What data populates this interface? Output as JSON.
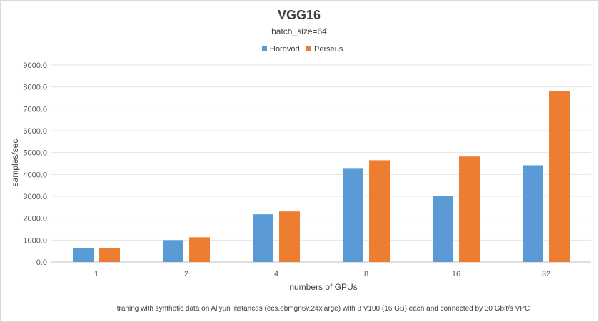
{
  "chart_data": {
    "type": "bar",
    "title": "VGG16",
    "subtitle": "batch_size=64",
    "xlabel": "numbers of GPUs",
    "ylabel": "samples/sec",
    "note": "traning with synthetic data on Aliyun instances (ecs.ebmgn6v.24xlarge) with 8  V100 (16 GB) each and connected by 30 Gbit/s VPC",
    "categories": [
      "1",
      "2",
      "4",
      "8",
      "16",
      "32"
    ],
    "ylim": [
      0,
      9000
    ],
    "yticks": [
      "0.0",
      "1000.0",
      "2000.0",
      "3000.0",
      "4000.0",
      "5000.0",
      "6000.0",
      "7000.0",
      "8000.0",
      "9000.0"
    ],
    "grid": true,
    "legend_position": "top",
    "series": [
      {
        "name": "Horovod",
        "color": "#5b9bd5",
        "values": [
          630,
          1000,
          2180,
          4260,
          3000,
          4420
        ]
      },
      {
        "name": "Perseus",
        "color": "#ed7d31",
        "values": [
          640,
          1130,
          2310,
          4650,
          4820,
          7820
        ]
      }
    ]
  }
}
